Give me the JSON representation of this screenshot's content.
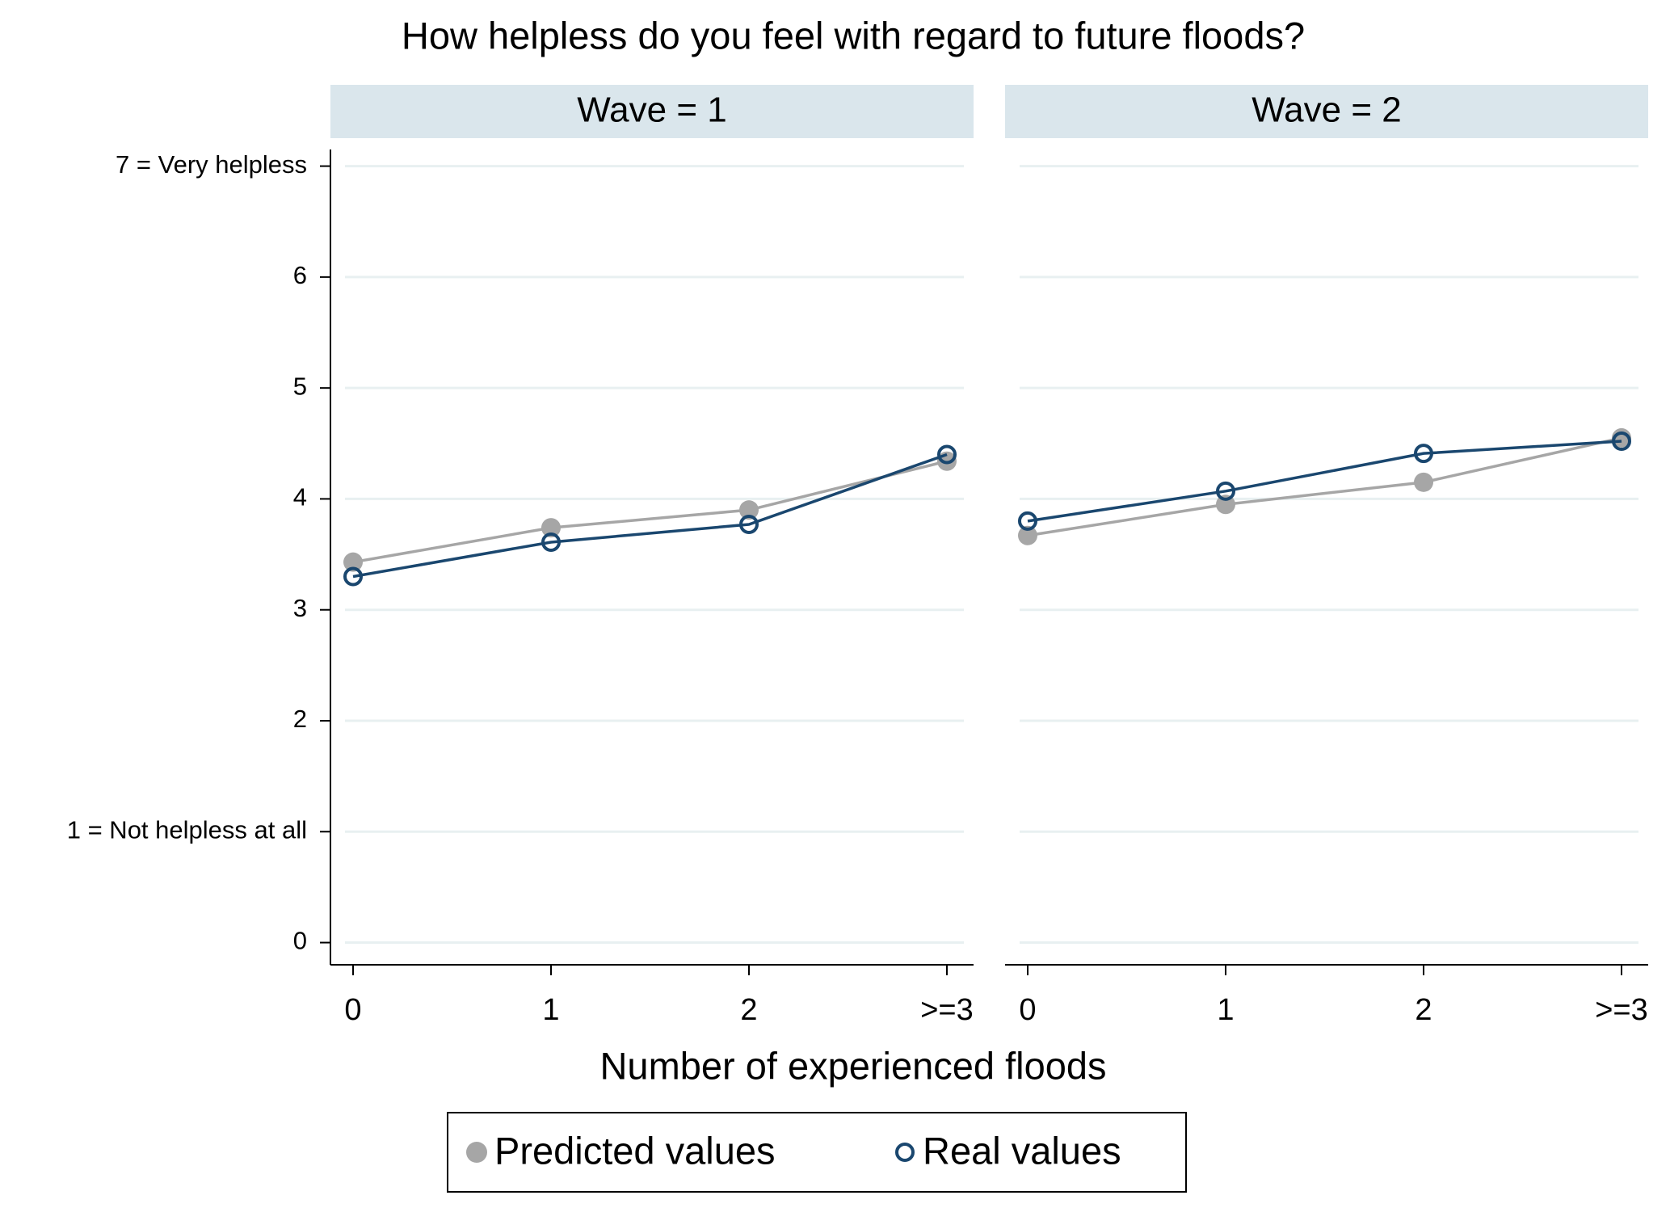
{
  "chart_data": {
    "type": "line",
    "title": "How helpless do you feel with regard to future floods?",
    "x_label": "Number of experienced floods",
    "categories": [
      "0",
      "1",
      "2",
      ">=3"
    ],
    "ylim": [
      -0.2,
      7.15
    ],
    "yticks": [
      0,
      {
        "value": 1,
        "label": "1 = Not helpless at all"
      },
      2,
      3,
      4,
      5,
      6,
      {
        "value": 7,
        "label": "7 = Very helpless"
      }
    ],
    "grid": true,
    "legend": "bottom",
    "panels": [
      {
        "title": "Wave = 1",
        "series": [
          {
            "name": "Predicted values",
            "color": "#a6a6a6",
            "marker": "filled",
            "values": [
              3.43,
              3.74,
              3.9,
              4.34
            ]
          },
          {
            "name": "Real values",
            "color": "#1a476f",
            "marker": "hollow",
            "values": [
              3.3,
              3.61,
              3.77,
              4.4
            ]
          }
        ]
      },
      {
        "title": "Wave = 2",
        "series": [
          {
            "name": "Predicted values",
            "color": "#a6a6a6",
            "marker": "filled",
            "values": [
              3.67,
              3.95,
              4.15,
              4.55
            ]
          },
          {
            "name": "Real values",
            "color": "#1a476f",
            "marker": "hollow",
            "values": [
              3.8,
              4.07,
              4.41,
              4.52
            ]
          }
        ]
      }
    ]
  }
}
